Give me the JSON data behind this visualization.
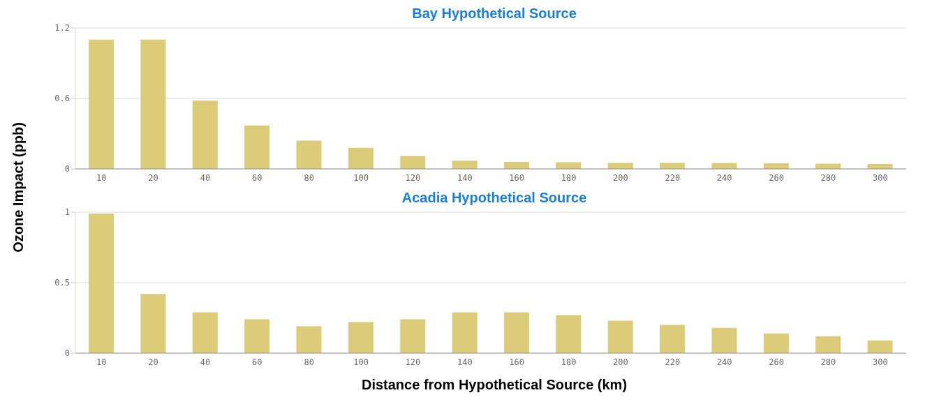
{
  "chart_data": [
    {
      "type": "bar",
      "title": "Bay Hypothetical Source",
      "ylabel": "Ozone Impact (ppb)",
      "categories": [
        "10",
        "20",
        "40",
        "60",
        "80",
        "100",
        "120",
        "140",
        "160",
        "180",
        "200",
        "220",
        "240",
        "260",
        "280",
        "300"
      ],
      "values": [
        1.1,
        1.1,
        0.58,
        0.37,
        0.24,
        0.18,
        0.11,
        0.07,
        0.06,
        0.057,
        0.052,
        0.052,
        0.05,
        0.047,
        0.045,
        0.042
      ],
      "color": "#dccb78",
      "ylim": [
        0,
        1.2
      ],
      "yticks": [
        0,
        0.6,
        1.2
      ],
      "grid": "y",
      "legend": false
    },
    {
      "type": "bar",
      "title": "Acadia Hypothetical Source",
      "xlabel": "Distance from Hypothetical Source (km)",
      "categories": [
        "10",
        "20",
        "40",
        "60",
        "80",
        "100",
        "120",
        "140",
        "160",
        "180",
        "200",
        "220",
        "240",
        "260",
        "280",
        "300"
      ],
      "values": [
        0.99,
        0.42,
        0.29,
        0.24,
        0.19,
        0.22,
        0.24,
        0.29,
        0.29,
        0.27,
        0.23,
        0.2,
        0.18,
        0.14,
        0.12,
        0.09
      ],
      "color": "#dccb78",
      "ylim": [
        0,
        1
      ],
      "yticks": [
        0,
        0.5,
        1
      ],
      "grid": "y",
      "legend": false
    }
  ]
}
